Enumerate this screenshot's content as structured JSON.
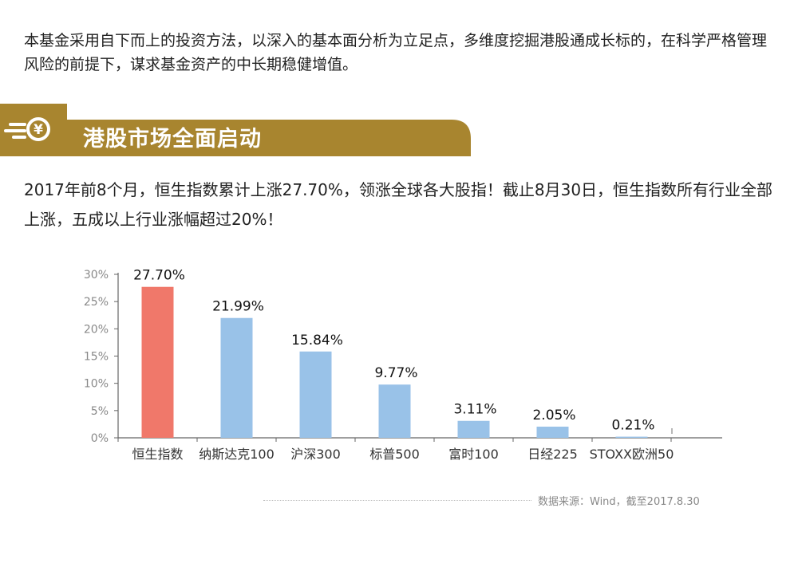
{
  "intro": "本基金采用自下而上的投资方法，以深入的基本面分析为立足点，多维度挖掘港股通成长标的，在科学严格管理风险的前提下，谋求基金资产的中长期稳健增值。",
  "section_title": "港股市场全面启动",
  "lead": "2017年前8个月，恒生指数累计上涨27.70%，领涨全球各大股指！截止8月30日，恒生指数所有行业全部上涨，五成以上行业涨幅超过20%！",
  "icon_symbol": "¥",
  "source": "数据来源：Wind，截至2017.8.30",
  "colors": {
    "banner": "#a8852f",
    "highlight": "#f0786a",
    "bar": "#99c2e8",
    "axis": "#666666"
  },
  "chart_data": {
    "type": "bar",
    "categories": [
      "恒生指数",
      "纳斯达克100",
      "沪深300",
      "标普500",
      "富时100",
      "日经225",
      "STOXX欧洲50"
    ],
    "values": [
      27.7,
      21.99,
      15.84,
      9.77,
      3.11,
      2.05,
      0.21
    ],
    "value_labels": [
      "27.70%",
      "21.99%",
      "15.84%",
      "9.77%",
      "3.11%",
      "2.05%",
      "0.21%"
    ],
    "yticks": [
      "0%",
      "5%",
      "10%",
      "15%",
      "20%",
      "25%",
      "30%"
    ],
    "ylim": [
      0,
      30
    ],
    "highlight_index": 0,
    "grid": false,
    "title": "",
    "xlabel": "",
    "ylabel": ""
  }
}
